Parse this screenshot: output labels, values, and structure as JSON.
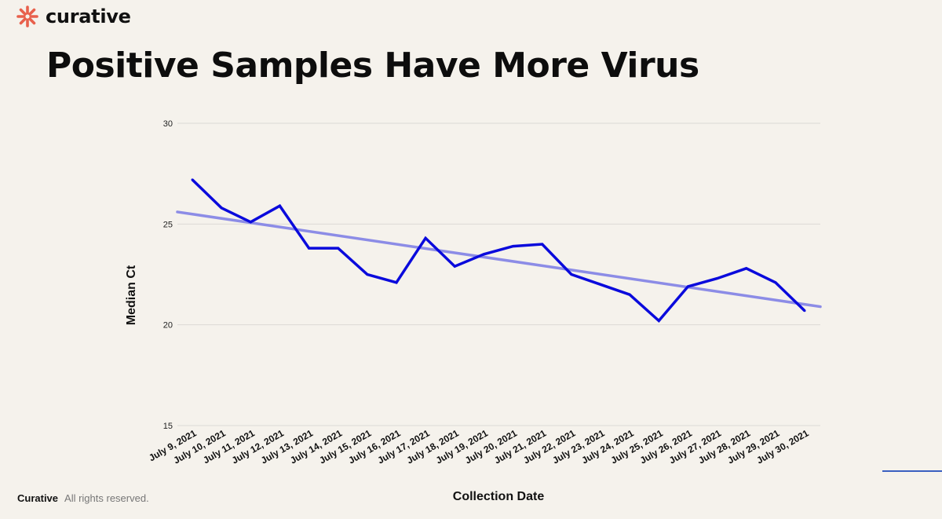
{
  "brand": {
    "name": "curative",
    "logo_icon": "asterisk-logo-icon",
    "logo_color": "#e8604c"
  },
  "slide": {
    "title": "Positive Samples Have More Virus"
  },
  "footer": {
    "brand": "Curative",
    "rights": "All rights reserved."
  },
  "colors": {
    "background": "#f5f2ec",
    "series_line": "#0a0adc",
    "trend_line": "#8c8ce6",
    "accent_line": "#3a5fc0"
  },
  "chart_data": {
    "type": "line",
    "title": "",
    "xlabel": "Collection Date",
    "ylabel": "Median Ct",
    "ylim": [
      15,
      30
    ],
    "yticks": [
      15,
      20,
      25,
      30
    ],
    "grid": true,
    "legend": "none",
    "categories": [
      "July 9, 2021",
      "July 10, 2021",
      "July 11, 2021",
      "July 12, 2021",
      "July 13, 2021",
      "July 14, 2021",
      "July 15, 2021",
      "July 16, 2021",
      "July 17, 2021",
      "July 18, 2021",
      "July 19, 2021",
      "July 20, 2021",
      "July 21, 2021",
      "July 22, 2021",
      "July 23, 2021",
      "July 24, 2021",
      "July 25, 2021",
      "July 26, 2021",
      "July 27, 2021",
      "July 28, 2021",
      "July 29, 2021",
      "July 30, 2021"
    ],
    "series": [
      {
        "values": [
          27.2,
          25.8,
          25.1,
          25.9,
          23.8,
          23.8,
          22.5,
          22.1,
          24.3,
          22.9,
          23.5,
          23.9,
          24.0,
          22.5,
          22.0,
          21.5,
          20.2,
          21.9,
          22.3,
          22.8,
          22.1,
          20.7
        ]
      }
    ],
    "trendline": {
      "type": "linear",
      "start": 25.6,
      "end": 20.9
    }
  }
}
